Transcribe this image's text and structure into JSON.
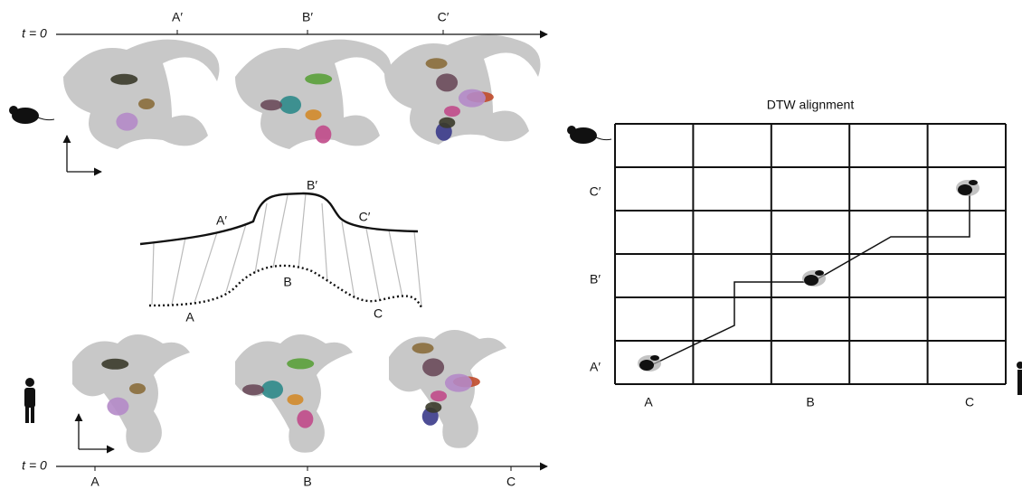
{
  "top_axis": {
    "start_label": "t = 0",
    "ticks": [
      "A′",
      "B′",
      "C′"
    ]
  },
  "bottom_axis": {
    "start_label": "t = 0",
    "ticks": [
      "A",
      "B",
      "C"
    ]
  },
  "curves": {
    "top_labels": [
      "A′",
      "B′",
      "C′"
    ],
    "bottom_labels": [
      "A",
      "B",
      "C"
    ]
  },
  "dtw": {
    "title": "DTW alignment",
    "row_labels": [
      "C′",
      "B′",
      "A′"
    ],
    "col_labels": [
      "A",
      "B",
      "C"
    ]
  }
}
